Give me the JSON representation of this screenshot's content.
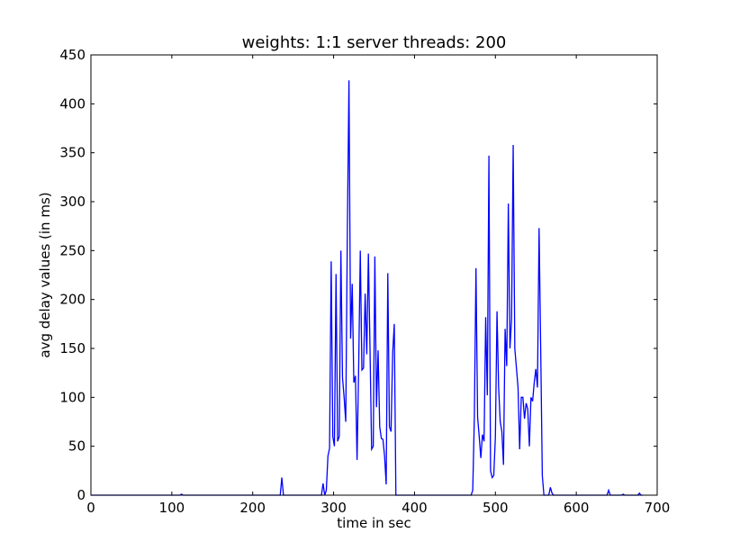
{
  "chart_data": {
    "type": "line",
    "title": "weights: 1:1  server threads: 200",
    "xlabel": "time in sec",
    "ylabel": "avg delay values (in ms)",
    "xlim": [
      0,
      700
    ],
    "ylim": [
      0,
      450
    ],
    "xticks": [
      0,
      100,
      200,
      300,
      400,
      500,
      600,
      700
    ],
    "yticks": [
      0,
      50,
      100,
      150,
      200,
      250,
      300,
      350,
      400,
      450
    ],
    "grid": false,
    "legend": "none",
    "series": [
      {
        "color": "#0000ff",
        "x": [
          0,
          110,
          112,
          114,
          234,
          236,
          238,
          285,
          287,
          289,
          291,
          293,
          295,
          297,
          299,
          301,
          303,
          305,
          307,
          309,
          311,
          313,
          315,
          317,
          319,
          321,
          323,
          325,
          327,
          329,
          331,
          333,
          335,
          337,
          339,
          341,
          343,
          345,
          347,
          349,
          351,
          353,
          355,
          357,
          359,
          361,
          363,
          365,
          367,
          369,
          371,
          373,
          375,
          377,
          379,
          381,
          470,
          472,
          474,
          476,
          478,
          480,
          482,
          484,
          486,
          488,
          490,
          492,
          494,
          496,
          498,
          500,
          502,
          504,
          506,
          508,
          510,
          512,
          514,
          516,
          518,
          520,
          522,
          524,
          526,
          528,
          530,
          532,
          534,
          536,
          538,
          540,
          542,
          544,
          546,
          548,
          550,
          552,
          554,
          556,
          558,
          560,
          562,
          564,
          566,
          568,
          570,
          572,
          574,
          638,
          640,
          642,
          656,
          658,
          660,
          676,
          678,
          680,
          682
        ],
        "y": [
          0,
          0,
          1,
          0,
          0,
          18,
          0,
          0,
          12,
          0,
          5,
          40,
          48,
          239,
          60,
          50,
          226,
          55,
          60,
          250,
          120,
          100,
          75,
          270,
          424,
          160,
          216,
          115,
          122,
          36,
          132,
          250,
          128,
          130,
          206,
          144,
          247,
          150,
          47,
          50,
          244,
          90,
          148,
          70,
          58,
          57,
          40,
          11,
          227,
          70,
          65,
          145,
          175,
          0,
          0,
          0,
          0,
          5,
          80,
          232,
          80,
          60,
          38,
          62,
          55,
          182,
          102,
          347,
          25,
          18,
          20,
          60,
          188,
          110,
          75,
          65,
          31,
          170,
          132,
          298,
          150,
          180,
          358,
          150,
          130,
          110,
          47,
          100,
          100,
          78,
          94,
          88,
          50,
          100,
          96,
          115,
          129,
          110,
          273,
          150,
          20,
          0,
          0,
          0,
          0,
          8,
          2,
          0,
          0,
          0,
          5,
          0,
          0,
          1,
          0,
          0,
          2,
          0,
          0
        ]
      }
    ]
  }
}
